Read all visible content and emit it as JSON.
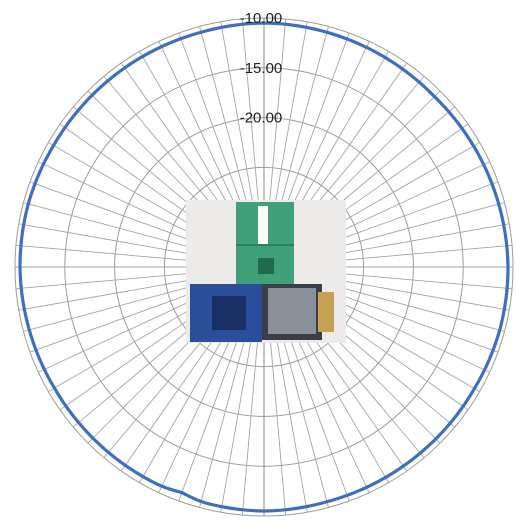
{
  "chart_data": {
    "type": "radar",
    "title": "",
    "r_axis": {
      "tick_labels": [
        "-10.00",
        "-15.00",
        "-20.00"
      ],
      "outer": -10,
      "step": 5,
      "rings": 5
    },
    "spokes": 72,
    "grid": true,
    "series": [
      {
        "color": "#3e6fbf",
        "angles_deg": [
          0,
          15,
          30,
          45,
          60,
          75,
          90,
          105,
          120,
          135,
          150,
          165,
          180,
          195,
          200,
          205,
          210,
          225,
          240,
          255,
          270,
          285,
          300,
          315,
          330,
          345,
          360
        ],
        "values": [
          -10.5,
          -10.6,
          -10.7,
          -10.8,
          -10.7,
          -10.6,
          -10.5,
          -10.5,
          -10.6,
          -10.6,
          -10.6,
          -10.6,
          -10.5,
          -10.6,
          -10.9,
          -10.7,
          -10.7,
          -10.7,
          -10.7,
          -10.6,
          -10.5,
          -10.5,
          -10.6,
          -10.6,
          -10.6,
          -10.6,
          -10.5
        ]
      }
    ],
    "inset_image": "RF evaluation board photo (green antenna PCB on blue module board)"
  }
}
